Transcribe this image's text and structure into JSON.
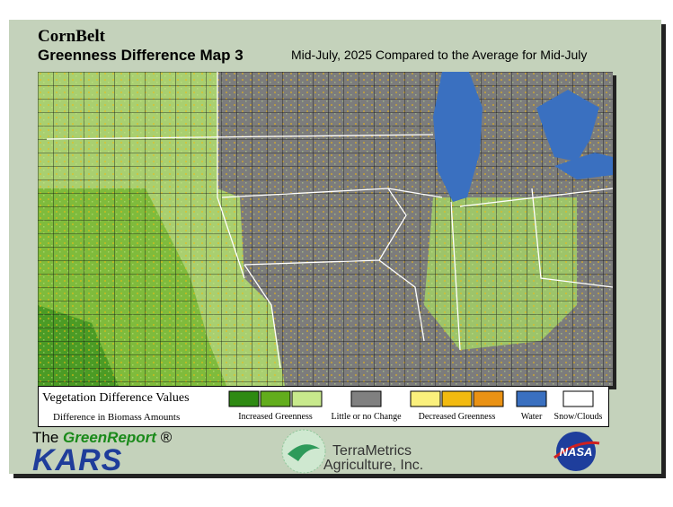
{
  "header": {
    "region": "CornBelt",
    "title": "Greenness Difference Map 3",
    "subtitle": "Mid-July, 2025 Compared to the Average for Mid-July"
  },
  "legend": {
    "title": "Vegetation Difference Values",
    "subtitle": "Difference in Biomass Amounts",
    "items": [
      {
        "label": "Increased Greenness",
        "colors": [
          "#2e8a12",
          "#62ad1c",
          "#c8e98c"
        ]
      },
      {
        "label": "Little or no Change",
        "colors": [
          "#808080"
        ]
      },
      {
        "label": "Decreased Greenness",
        "colors": [
          "#faf07c",
          "#f2ba10",
          "#ea9214"
        ]
      },
      {
        "label": "Water",
        "colors": [
          "#3a70c0"
        ]
      },
      {
        "label": "Snow/Clouds",
        "colors": [
          "#ffffff"
        ]
      }
    ]
  },
  "logos": {
    "greenreport": {
      "prefix": "The",
      "name": "GreenReport",
      "mark": "®"
    },
    "kars": "KARS",
    "terrametrics": {
      "name": "TerraMetrics",
      "tagline": "Agriculture, Inc."
    },
    "nasa": "NASA"
  }
}
